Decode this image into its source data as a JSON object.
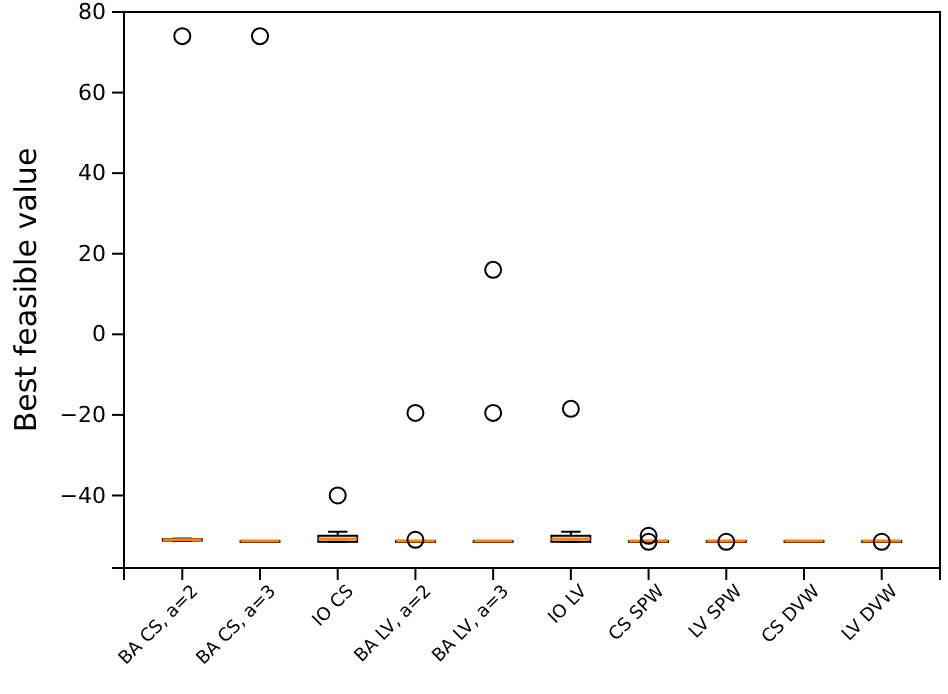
{
  "chart_data": {
    "type": "box",
    "ylabel": "Best feasible value",
    "categories": [
      "BA CS, a=2",
      "BA CS, a=3",
      "IO CS",
      "BA LV, a=2",
      "BA LV, a=3",
      "IO LV",
      "CS SPW",
      "LV SPW",
      "CS DVW",
      "LV DVW"
    ],
    "boxes": [
      {
        "low": -51.3,
        "q1": -51.2,
        "median": -51,
        "q3": -50.8,
        "high": -50.7,
        "outliers": [
          74
        ]
      },
      {
        "low": -51.3,
        "q1": -51.3,
        "median": -51.3,
        "q3": -51.3,
        "high": -51.3,
        "outliers": [
          74
        ]
      },
      {
        "low": -51.5,
        "q1": -51.5,
        "median": -50.8,
        "q3": -50,
        "high": -49,
        "outliers": [
          -40
        ]
      },
      {
        "low": -51.3,
        "q1": -51.3,
        "median": -51.3,
        "q3": -51.3,
        "high": -51.3,
        "outliers": [
          -19.5,
          -51
        ]
      },
      {
        "low": -51.3,
        "q1": -51.3,
        "median": -51.3,
        "q3": -51.3,
        "high": -51.3,
        "outliers": [
          16,
          -19.5
        ]
      },
      {
        "low": -51.5,
        "q1": -51.5,
        "median": -50.8,
        "q3": -50,
        "high": -49,
        "outliers": [
          -18.5
        ]
      },
      {
        "low": -51.3,
        "q1": -51.3,
        "median": -51.3,
        "q3": -51.3,
        "high": -51.3,
        "outliers": [
          -50,
          -51.5
        ]
      },
      {
        "low": -51.3,
        "q1": -51.3,
        "median": -51.3,
        "q3": -51.3,
        "high": -51.3,
        "outliers": [
          -51.5
        ]
      },
      {
        "low": -51.3,
        "q1": -51.3,
        "median": -51.3,
        "q3": -51.3,
        "high": -51.3
      },
      {
        "low": -51.3,
        "q1": -51.3,
        "median": -51.3,
        "q3": -51.3,
        "high": -51.3,
        "outliers": [
          -51.5
        ]
      }
    ],
    "ylim": [
      -58,
      80
    ],
    "yticks": [
      -40,
      -20,
      0,
      20,
      40,
      60,
      80
    ],
    "grid": false
  }
}
